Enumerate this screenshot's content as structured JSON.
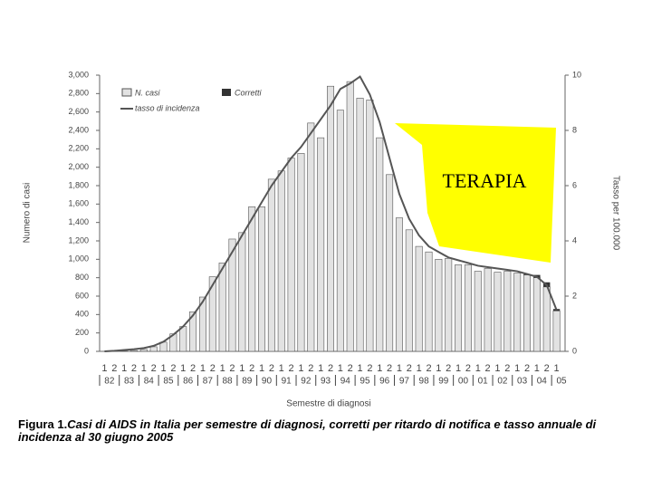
{
  "chart_data": {
    "type": "bar",
    "ylabel": "Numero di casi",
    "y2label": "Tasso per 100.000",
    "xlabel": "Semestre di diagnosi",
    "caption_lead": "Figura 1.",
    "caption": "Casi di AIDS in Italia per semestre di diagnosi, corretti per ritardo di notifica e tasso annuale di incidenza al 30 giugno 2005",
    "annotation": "TERAPIA",
    "categories": [
      "1",
      "2",
      "1",
      "2",
      "1",
      "2",
      "1",
      "2",
      "1",
      "2",
      "1",
      "2",
      "1",
      "2",
      "1",
      "2",
      "1",
      "2",
      "1",
      "2",
      "1",
      "2",
      "1",
      "2",
      "1",
      "2",
      "1",
      "2",
      "1",
      "2",
      "1",
      "2",
      "1",
      "2",
      "1",
      "2",
      "1",
      "2",
      "1",
      "2",
      "1",
      "2",
      "1",
      "2",
      "1",
      "2",
      "1"
    ],
    "years": [
      "82",
      "83",
      "84",
      "85",
      "86",
      "87",
      "88",
      "89",
      "90",
      "91",
      "92",
      "93",
      "94",
      "95",
      "96",
      "97",
      "98",
      "99",
      "00",
      "01",
      "02",
      "03",
      "04",
      "05"
    ],
    "series": [
      {
        "name": "N. casi",
        "color": "#e2e2e2",
        "values": [
          0,
          2,
          5,
          10,
          20,
          50,
          100,
          190,
          270,
          430,
          590,
          810,
          960,
          1220,
          1290,
          1570,
          1570,
          1870,
          1960,
          2100,
          2150,
          2480,
          2320,
          2880,
          2620,
          2930,
          2750,
          2730,
          2320,
          1920,
          1450,
          1320,
          1140,
          1080,
          1000,
          1010,
          940,
          940,
          870,
          900,
          860,
          870,
          850,
          830,
          800,
          700,
          440
        ]
      },
      {
        "name": "Corretti",
        "color": "#333333",
        "values": [
          0,
          0,
          0,
          0,
          0,
          0,
          0,
          0,
          0,
          0,
          0,
          0,
          0,
          0,
          0,
          0,
          0,
          0,
          0,
          0,
          0,
          0,
          0,
          0,
          0,
          0,
          0,
          0,
          0,
          0,
          0,
          0,
          0,
          0,
          0,
          0,
          0,
          0,
          0,
          0,
          0,
          0,
          0,
          10,
          30,
          50,
          20
        ]
      },
      {
        "name": "tasso di incidenza",
        "color": "#555555",
        "type": "line",
        "axis": "y2",
        "values": [
          0,
          0.02,
          0.05,
          0.08,
          0.12,
          0.2,
          0.35,
          0.6,
          0.9,
          1.3,
          1.8,
          2.4,
          3.0,
          3.6,
          4.2,
          4.8,
          5.4,
          6.0,
          6.5,
          7.0,
          7.4,
          7.9,
          8.4,
          8.9,
          9.5,
          9.7,
          9.95,
          9.3,
          8.3,
          7.0,
          5.7,
          4.8,
          4.2,
          3.8,
          3.6,
          3.4,
          3.3,
          3.2,
          3.1,
          3.05,
          3.0,
          2.95,
          2.9,
          2.8,
          2.7,
          2.4,
          1.5
        ]
      }
    ],
    "ylim": [
      0,
      3000
    ],
    "yticks": [
      0,
      200,
      400,
      600,
      800,
      {
        "value": 1000,
        "label": "1,000"
      },
      {
        "value": 1200,
        "label": "1,200"
      },
      {
        "value": 1400,
        "label": "1,400"
      },
      {
        "value": 1600,
        "label": "1,600"
      },
      {
        "value": 1800,
        "label": "1,800"
      },
      {
        "value": 2000,
        "label": "2,000"
      },
      {
        "value": 2200,
        "label": "2,200"
      },
      {
        "value": 2400,
        "label": "2,400"
      },
      {
        "value": 2600,
        "label": "2,600"
      },
      {
        "value": 2800,
        "label": "2,800"
      },
      {
        "value": 3000,
        "label": "3,000"
      }
    ],
    "y2lim": [
      0,
      10
    ],
    "y2ticks": [
      0,
      2,
      4,
      6,
      8,
      10
    ]
  }
}
